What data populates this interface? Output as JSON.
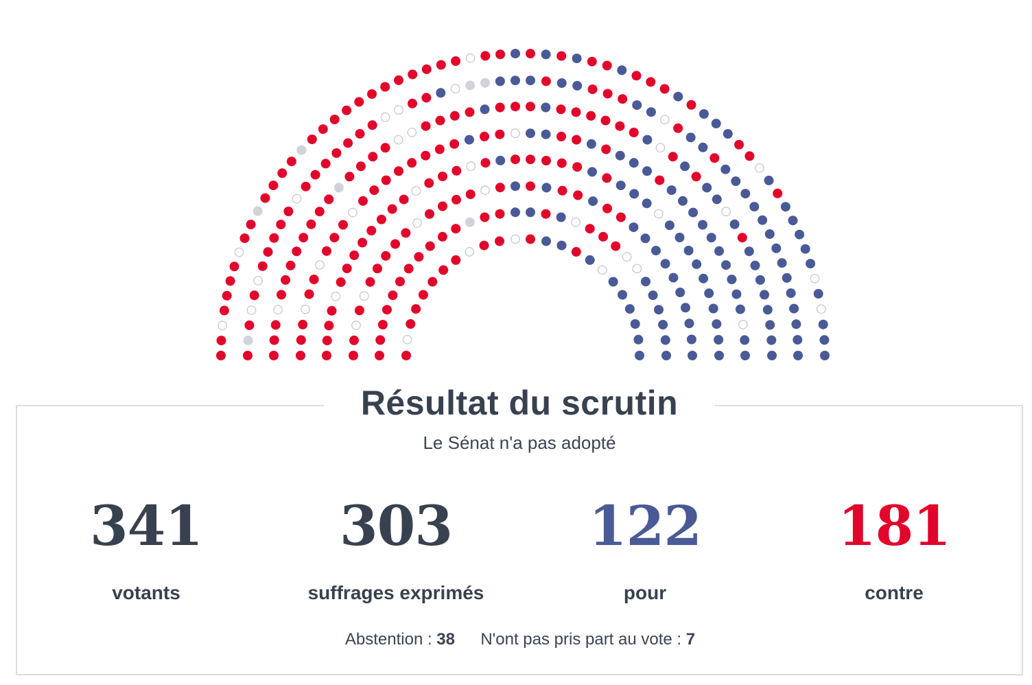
{
  "colors": {
    "pour": "#4a5a97",
    "contre": "#e2052b",
    "abstention": "#ffffff",
    "non_participation": "#d0d3d9",
    "text": "#3a4454"
  },
  "chart_data": {
    "type": "hemicycle",
    "title": "",
    "total_seats": 348,
    "groups": [
      {
        "label": "pour",
        "value": 122
      },
      {
        "label": "contre",
        "value": 181
      },
      {
        "label": "Abstention",
        "value": 38
      },
      {
        "label": "N'ont pas pris part au vote",
        "value": 7
      }
    ]
  },
  "result": {
    "title": "Résultat du scrutin",
    "subtitle": "Le Sénat n'a pas adopté"
  },
  "stats": [
    {
      "value": "341",
      "label": "votants"
    },
    {
      "value": "303",
      "label": "suffrages exprimés"
    },
    {
      "value": "122",
      "label": "pour"
    },
    {
      "value": "181",
      "label": "contre"
    }
  ],
  "footnote": {
    "abstention_label": "Abstention :",
    "abstention_value": "38",
    "npp_label": "N'ont pas pris part au vote :",
    "npp_value": "7"
  }
}
